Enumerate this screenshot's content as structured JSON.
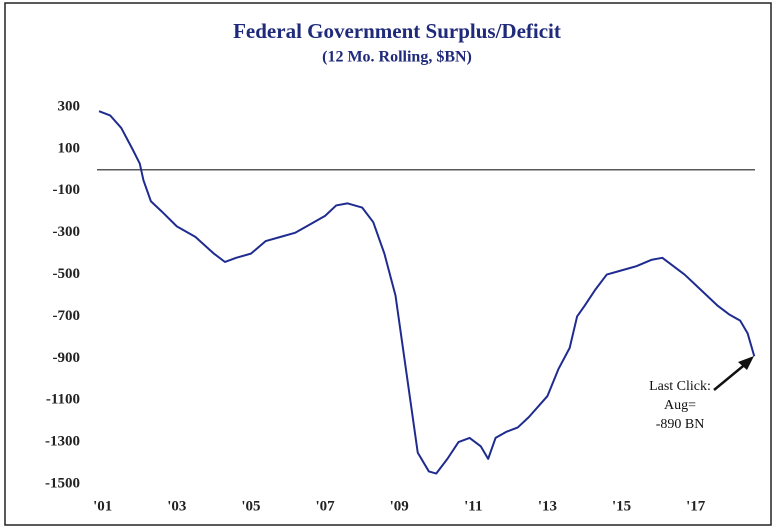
{
  "chart_data": {
    "type": "line",
    "title": "Federal Government Surplus/Deficit",
    "subtitle": "(12 Mo. Rolling, $BN)",
    "annotation": [
      "Last Click:",
      "Aug=",
      "-890 BN"
    ],
    "reference_line": 0,
    "xlim": [
      2000.9,
      2018.6
    ],
    "xticks": [
      {
        "value": 2001,
        "label": "'01"
      },
      {
        "value": 2003,
        "label": "'03"
      },
      {
        "value": 2005,
        "label": "'05"
      },
      {
        "value": 2007,
        "label": "'07"
      },
      {
        "value": 2009,
        "label": "'09"
      },
      {
        "value": 2011,
        "label": "'11"
      },
      {
        "value": 2013,
        "label": "'13"
      },
      {
        "value": 2015,
        "label": "'15"
      },
      {
        "value": 2017,
        "label": "'17"
      }
    ],
    "ylim": [
      -1500,
      300
    ],
    "yticks": [
      300,
      100,
      -100,
      -300,
      -500,
      -700,
      -900,
      -1100,
      -1300,
      -1500
    ],
    "series": [
      {
        "name": "Surplus/Deficit",
        "color": "#1f2c8f",
        "x": [
          2000.9,
          2001.2,
          2001.5,
          2001.8,
          2002.0,
          2002.1,
          2002.3,
          2002.6,
          2003.0,
          2003.5,
          2004.0,
          2004.3,
          2004.6,
          2005.0,
          2005.4,
          2005.8,
          2006.2,
          2006.5,
          2007.0,
          2007.3,
          2007.6,
          2008.0,
          2008.3,
          2008.6,
          2008.9,
          2009.1,
          2009.3,
          2009.5,
          2009.8,
          2010.0,
          2010.3,
          2010.6,
          2010.9,
          2011.2,
          2011.4,
          2011.6,
          2011.9,
          2012.2,
          2012.5,
          2012.8,
          2013.0,
          2013.3,
          2013.6,
          2013.8,
          2014.0,
          2014.3,
          2014.6,
          2015.0,
          2015.4,
          2015.8,
          2016.1,
          2016.4,
          2016.7,
          2017.0,
          2017.3,
          2017.6,
          2017.9,
          2018.2,
          2018.4,
          2018.58
        ],
        "values": [
          280,
          260,
          200,
          100,
          30,
          -50,
          -150,
          -200,
          -270,
          -320,
          -400,
          -440,
          -420,
          -400,
          -340,
          -320,
          -300,
          -270,
          -220,
          -170,
          -160,
          -180,
          -250,
          -400,
          -600,
          -850,
          -1100,
          -1350,
          -1440,
          -1450,
          -1380,
          -1300,
          -1280,
          -1320,
          -1380,
          -1280,
          -1250,
          -1230,
          -1180,
          -1120,
          -1080,
          -950,
          -850,
          -700,
          -650,
          -570,
          -500,
          -480,
          -460,
          -430,
          -420,
          -460,
          -500,
          -550,
          -600,
          -650,
          -690,
          -720,
          -780,
          -890
        ]
      }
    ]
  }
}
